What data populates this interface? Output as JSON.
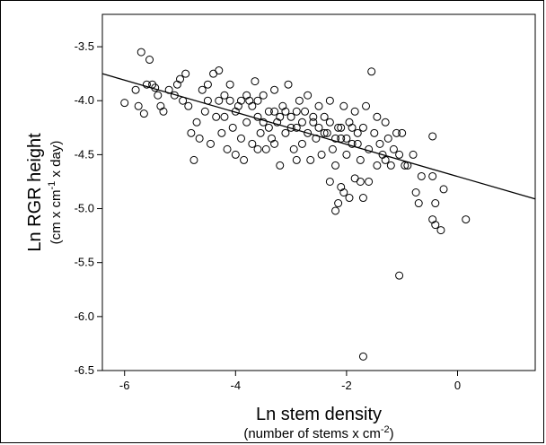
{
  "chart_data": {
    "type": "scatter",
    "title": "",
    "xlabel": "Ln stem density",
    "xlabel_sub_pre": "(number of stems x cm",
    "xlabel_sub_sup": "-2",
    "xlabel_sub_post": ")",
    "ylabel": "Ln RGR height",
    "ylabel_sub_pre": "(cm x cm",
    "ylabel_sub_sup": "-1",
    "ylabel_sub_post": " x day)",
    "xlim": [
      -6.4,
      1.4
    ],
    "ylim": [
      -6.5,
      -3.2
    ],
    "xticks": [
      -6,
      -4,
      -2,
      0
    ],
    "xtick_labels": [
      "-6",
      "-4",
      "-2",
      "0"
    ],
    "yticks": [
      -3.5,
      -4.0,
      -4.5,
      -5.0,
      -5.5,
      -6.0,
      -6.5
    ],
    "ytick_labels": [
      "-3.5",
      "-4.0",
      "-4.5",
      "-5.0",
      "-5.5",
      "-6.0",
      "-6.5"
    ],
    "grid": false,
    "marker": "open-circle",
    "colors": {
      "points": "#000000",
      "line": "#000000",
      "background": "#ffffff"
    },
    "fit_line": {
      "x": [
        -6.4,
        1.4
      ],
      "y": [
        -3.75,
        -4.91
      ]
    },
    "series": [
      {
        "points": [
          [
            -6.0,
            -4.02
          ],
          [
            -5.8,
            -3.9
          ],
          [
            -5.75,
            -4.05
          ],
          [
            -5.7,
            -3.55
          ],
          [
            -5.55,
            -3.62
          ],
          [
            -5.6,
            -3.85
          ],
          [
            -5.5,
            -3.85
          ],
          [
            -5.45,
            -3.88
          ],
          [
            -5.4,
            -3.95
          ],
          [
            -5.35,
            -4.05
          ],
          [
            -5.3,
            -4.1
          ],
          [
            -5.65,
            -4.12
          ],
          [
            -5.2,
            -3.9
          ],
          [
            -5.1,
            -3.95
          ],
          [
            -5.05,
            -3.85
          ],
          [
            -5.0,
            -3.8
          ],
          [
            -4.95,
            -4.0
          ],
          [
            -4.9,
            -3.75
          ],
          [
            -4.85,
            -4.05
          ],
          [
            -4.8,
            -4.3
          ],
          [
            -4.75,
            -4.55
          ],
          [
            -4.7,
            -4.2
          ],
          [
            -4.65,
            -4.35
          ],
          [
            -4.6,
            -3.9
          ],
          [
            -4.55,
            -4.1
          ],
          [
            -4.5,
            -4.0
          ],
          [
            -4.45,
            -4.4
          ],
          [
            -4.4,
            -3.75
          ],
          [
            -4.35,
            -4.15
          ],
          [
            -4.3,
            -3.72
          ],
          [
            -4.25,
            -4.3
          ],
          [
            -4.2,
            -3.95
          ],
          [
            -4.15,
            -4.45
          ],
          [
            -4.1,
            -3.85
          ],
          [
            -4.05,
            -4.25
          ],
          [
            -4.0,
            -4.5
          ],
          [
            -3.95,
            -4.05
          ],
          [
            -3.9,
            -4.35
          ],
          [
            -3.85,
            -4.55
          ],
          [
            -3.8,
            -4.2
          ],
          [
            -3.75,
            -4.0
          ],
          [
            -3.7,
            -4.4
          ],
          [
            -3.65,
            -3.82
          ],
          [
            -3.6,
            -4.15
          ],
          [
            -3.55,
            -4.3
          ],
          [
            -3.5,
            -3.95
          ],
          [
            -3.45,
            -4.45
          ],
          [
            -3.4,
            -4.1
          ],
          [
            -3.35,
            -4.35
          ],
          [
            -3.3,
            -3.9
          ],
          [
            -3.25,
            -4.2
          ],
          [
            -3.2,
            -4.6
          ],
          [
            -3.15,
            -4.05
          ],
          [
            -3.1,
            -4.3
          ],
          [
            -3.05,
            -3.85
          ],
          [
            -3.0,
            -4.15
          ],
          [
            -2.95,
            -4.45
          ],
          [
            -2.9,
            -4.25
          ],
          [
            -2.85,
            -4.0
          ],
          [
            -2.8,
            -4.4
          ],
          [
            -2.75,
            -4.1
          ],
          [
            -2.7,
            -3.95
          ],
          [
            -2.65,
            -4.55
          ],
          [
            -2.6,
            -4.2
          ],
          [
            -2.55,
            -4.35
          ],
          [
            -2.5,
            -4.05
          ],
          [
            -2.45,
            -4.5
          ],
          [
            -2.4,
            -4.15
          ],
          [
            -2.35,
            -4.3
          ],
          [
            -2.3,
            -4.0
          ],
          [
            -2.25,
            -4.45
          ],
          [
            -2.2,
            -4.6
          ],
          [
            -2.15,
            -4.25
          ],
          [
            -2.1,
            -4.35
          ],
          [
            -2.05,
            -4.05
          ],
          [
            -2.0,
            -4.5
          ],
          [
            -1.95,
            -4.2
          ],
          [
            -1.9,
            -4.4
          ],
          [
            -1.85,
            -4.1
          ],
          [
            -1.8,
            -4.3
          ],
          [
            -1.75,
            -4.55
          ],
          [
            -1.7,
            -4.25
          ],
          [
            -1.65,
            -4.05
          ],
          [
            -1.6,
            -4.45
          ],
          [
            -1.55,
            -3.73
          ],
          [
            -1.5,
            -4.3
          ],
          [
            -1.45,
            -4.15
          ],
          [
            -1.4,
            -4.4
          ],
          [
            -1.35,
            -4.5
          ],
          [
            -1.3,
            -4.2
          ],
          [
            -1.25,
            -4.35
          ],
          [
            -1.2,
            -4.6
          ],
          [
            -1.15,
            -4.45
          ],
          [
            -1.1,
            -4.3
          ],
          [
            -1.05,
            -4.5
          ],
          [
            -1.0,
            -4.3
          ],
          [
            -0.95,
            -4.6
          ],
          [
            -0.9,
            -4.6
          ],
          [
            -0.8,
            -4.5
          ],
          [
            -0.75,
            -4.85
          ],
          [
            -0.7,
            -4.95
          ],
          [
            -0.65,
            -4.7
          ],
          [
            -0.45,
            -4.7
          ],
          [
            -0.4,
            -4.95
          ],
          [
            -0.45,
            -5.1
          ],
          [
            -0.4,
            -5.15
          ],
          [
            -0.3,
            -5.2
          ],
          [
            -0.25,
            -4.82
          ],
          [
            -0.45,
            -4.33
          ],
          [
            0.15,
            -5.1
          ],
          [
            -1.05,
            -5.62
          ],
          [
            -1.7,
            -6.37
          ],
          [
            -1.75,
            -4.75
          ],
          [
            -1.85,
            -4.72
          ],
          [
            -1.95,
            -4.9
          ],
          [
            -2.05,
            -4.85
          ],
          [
            -2.15,
            -4.95
          ],
          [
            -2.2,
            -5.02
          ],
          [
            -2.3,
            -4.75
          ],
          [
            -1.7,
            -4.9
          ],
          [
            -1.3,
            -4.55
          ],
          [
            -1.45,
            -4.6
          ],
          [
            -2.1,
            -4.8
          ],
          [
            -1.6,
            -4.75
          ],
          [
            -4.5,
            -3.85
          ],
          [
            -4.3,
            -4.0
          ],
          [
            -4.2,
            -4.15
          ],
          [
            -4.1,
            -4.0
          ],
          [
            -4.0,
            -4.1
          ],
          [
            -3.9,
            -4.0
          ],
          [
            -3.8,
            -3.95
          ],
          [
            -3.7,
            -4.05
          ],
          [
            -3.6,
            -4.0
          ],
          [
            -3.5,
            -4.2
          ],
          [
            -3.4,
            -4.25
          ],
          [
            -3.3,
            -4.1
          ],
          [
            -3.2,
            -4.15
          ],
          [
            -3.1,
            -4.1
          ],
          [
            -3.0,
            -4.25
          ],
          [
            -2.9,
            -4.1
          ],
          [
            -2.8,
            -4.2
          ],
          [
            -2.7,
            -4.3
          ],
          [
            -2.6,
            -4.15
          ],
          [
            -2.5,
            -4.25
          ],
          [
            -2.4,
            -4.3
          ],
          [
            -2.3,
            -4.2
          ],
          [
            -2.2,
            -4.35
          ],
          [
            -2.1,
            -4.25
          ],
          [
            -2.0,
            -4.35
          ],
          [
            -1.9,
            -4.25
          ],
          [
            -1.8,
            -4.4
          ],
          [
            -3.3,
            -4.4
          ],
          [
            -3.6,
            -4.45
          ],
          [
            -2.9,
            -4.55
          ]
        ]
      }
    ]
  }
}
